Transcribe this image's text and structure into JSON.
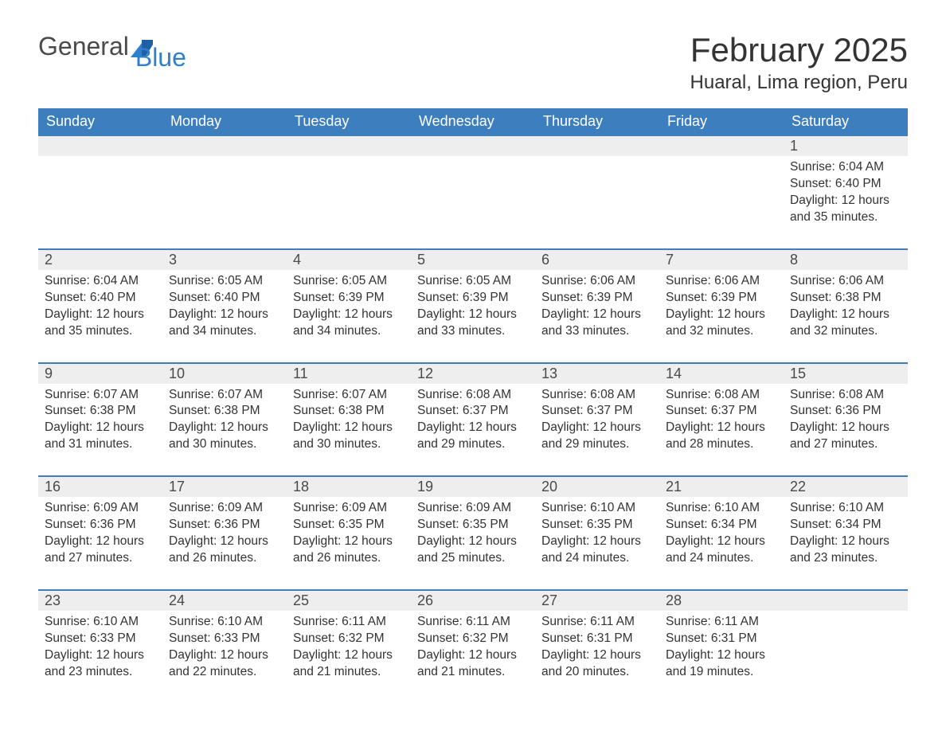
{
  "logo": {
    "word1": "General",
    "word2": "Blue"
  },
  "title": "February 2025",
  "location": "Huaral, Lima region, Peru",
  "colors": {
    "header_bg": "#3d7ebf",
    "header_text": "#ffffff",
    "daynum_bg": "#eeeeee",
    "row_border": "#3d7ebf",
    "body_text": "#333333",
    "logo_gray": "#4a4a4a",
    "logo_blue": "#2f7fcf",
    "page_bg": "#ffffff"
  },
  "daysOfWeek": [
    "Sunday",
    "Monday",
    "Tuesday",
    "Wednesday",
    "Thursday",
    "Friday",
    "Saturday"
  ],
  "weeks": [
    [
      null,
      null,
      null,
      null,
      null,
      null,
      {
        "n": "1",
        "sunrise": "Sunrise: 6:04 AM",
        "sunset": "Sunset: 6:40 PM",
        "daylight": "Daylight: 12 hours and 35 minutes."
      }
    ],
    [
      {
        "n": "2",
        "sunrise": "Sunrise: 6:04 AM",
        "sunset": "Sunset: 6:40 PM",
        "daylight": "Daylight: 12 hours and 35 minutes."
      },
      {
        "n": "3",
        "sunrise": "Sunrise: 6:05 AM",
        "sunset": "Sunset: 6:40 PM",
        "daylight": "Daylight: 12 hours and 34 minutes."
      },
      {
        "n": "4",
        "sunrise": "Sunrise: 6:05 AM",
        "sunset": "Sunset: 6:39 PM",
        "daylight": "Daylight: 12 hours and 34 minutes."
      },
      {
        "n": "5",
        "sunrise": "Sunrise: 6:05 AM",
        "sunset": "Sunset: 6:39 PM",
        "daylight": "Daylight: 12 hours and 33 minutes."
      },
      {
        "n": "6",
        "sunrise": "Sunrise: 6:06 AM",
        "sunset": "Sunset: 6:39 PM",
        "daylight": "Daylight: 12 hours and 33 minutes."
      },
      {
        "n": "7",
        "sunrise": "Sunrise: 6:06 AM",
        "sunset": "Sunset: 6:39 PM",
        "daylight": "Daylight: 12 hours and 32 minutes."
      },
      {
        "n": "8",
        "sunrise": "Sunrise: 6:06 AM",
        "sunset": "Sunset: 6:38 PM",
        "daylight": "Daylight: 12 hours and 32 minutes."
      }
    ],
    [
      {
        "n": "9",
        "sunrise": "Sunrise: 6:07 AM",
        "sunset": "Sunset: 6:38 PM",
        "daylight": "Daylight: 12 hours and 31 minutes."
      },
      {
        "n": "10",
        "sunrise": "Sunrise: 6:07 AM",
        "sunset": "Sunset: 6:38 PM",
        "daylight": "Daylight: 12 hours and 30 minutes."
      },
      {
        "n": "11",
        "sunrise": "Sunrise: 6:07 AM",
        "sunset": "Sunset: 6:38 PM",
        "daylight": "Daylight: 12 hours and 30 minutes."
      },
      {
        "n": "12",
        "sunrise": "Sunrise: 6:08 AM",
        "sunset": "Sunset: 6:37 PM",
        "daylight": "Daylight: 12 hours and 29 minutes."
      },
      {
        "n": "13",
        "sunrise": "Sunrise: 6:08 AM",
        "sunset": "Sunset: 6:37 PM",
        "daylight": "Daylight: 12 hours and 29 minutes."
      },
      {
        "n": "14",
        "sunrise": "Sunrise: 6:08 AM",
        "sunset": "Sunset: 6:37 PM",
        "daylight": "Daylight: 12 hours and 28 minutes."
      },
      {
        "n": "15",
        "sunrise": "Sunrise: 6:08 AM",
        "sunset": "Sunset: 6:36 PM",
        "daylight": "Daylight: 12 hours and 27 minutes."
      }
    ],
    [
      {
        "n": "16",
        "sunrise": "Sunrise: 6:09 AM",
        "sunset": "Sunset: 6:36 PM",
        "daylight": "Daylight: 12 hours and 27 minutes."
      },
      {
        "n": "17",
        "sunrise": "Sunrise: 6:09 AM",
        "sunset": "Sunset: 6:36 PM",
        "daylight": "Daylight: 12 hours and 26 minutes."
      },
      {
        "n": "18",
        "sunrise": "Sunrise: 6:09 AM",
        "sunset": "Sunset: 6:35 PM",
        "daylight": "Daylight: 12 hours and 26 minutes."
      },
      {
        "n": "19",
        "sunrise": "Sunrise: 6:09 AM",
        "sunset": "Sunset: 6:35 PM",
        "daylight": "Daylight: 12 hours and 25 minutes."
      },
      {
        "n": "20",
        "sunrise": "Sunrise: 6:10 AM",
        "sunset": "Sunset: 6:35 PM",
        "daylight": "Daylight: 12 hours and 24 minutes."
      },
      {
        "n": "21",
        "sunrise": "Sunrise: 6:10 AM",
        "sunset": "Sunset: 6:34 PM",
        "daylight": "Daylight: 12 hours and 24 minutes."
      },
      {
        "n": "22",
        "sunrise": "Sunrise: 6:10 AM",
        "sunset": "Sunset: 6:34 PM",
        "daylight": "Daylight: 12 hours and 23 minutes."
      }
    ],
    [
      {
        "n": "23",
        "sunrise": "Sunrise: 6:10 AM",
        "sunset": "Sunset: 6:33 PM",
        "daylight": "Daylight: 12 hours and 23 minutes."
      },
      {
        "n": "24",
        "sunrise": "Sunrise: 6:10 AM",
        "sunset": "Sunset: 6:33 PM",
        "daylight": "Daylight: 12 hours and 22 minutes."
      },
      {
        "n": "25",
        "sunrise": "Sunrise: 6:11 AM",
        "sunset": "Sunset: 6:32 PM",
        "daylight": "Daylight: 12 hours and 21 minutes."
      },
      {
        "n": "26",
        "sunrise": "Sunrise: 6:11 AM",
        "sunset": "Sunset: 6:32 PM",
        "daylight": "Daylight: 12 hours and 21 minutes."
      },
      {
        "n": "27",
        "sunrise": "Sunrise: 6:11 AM",
        "sunset": "Sunset: 6:31 PM",
        "daylight": "Daylight: 12 hours and 20 minutes."
      },
      {
        "n": "28",
        "sunrise": "Sunrise: 6:11 AM",
        "sunset": "Sunset: 6:31 PM",
        "daylight": "Daylight: 12 hours and 19 minutes."
      },
      null
    ]
  ]
}
